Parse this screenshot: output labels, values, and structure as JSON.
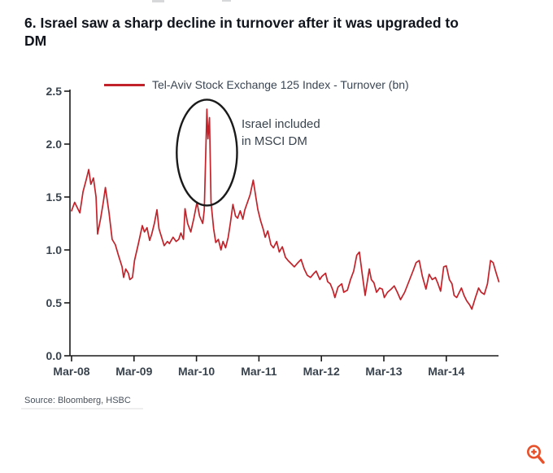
{
  "page": {
    "title": "6. Israel saw a sharp decline in turnover after it was upgraded to DM",
    "source": "Source: Bloomberg, HSBC"
  },
  "legend": {
    "label": "Tel-Aviv Stock Exchange 125 Index - Turnover (bn)",
    "swatch_color": "#c2222a"
  },
  "annotation": {
    "line1": "Israel included",
    "line2": "in MSCI DM"
  },
  "controls": {
    "zoom_icon": "magnifier-plus",
    "zoom_icon_color": "#e8502a"
  },
  "chart_data": {
    "type": "line",
    "title": "Tel-Aviv Stock Exchange 125 Index - Turnover (bn)",
    "xlabel": "",
    "ylabel": "",
    "x_unit": "months since Mar-2008",
    "xlim_months": [
      0,
      82
    ],
    "ylim": [
      0,
      2.5
    ],
    "grid": false,
    "legend_position": "top",
    "x_tick_labels": [
      "Mar-08",
      "Mar-09",
      "Mar-10",
      "Mar-11",
      "Mar-12",
      "Mar-13",
      "Mar-14"
    ],
    "x_tick_months": [
      0,
      12,
      24,
      36,
      48,
      60,
      72
    ],
    "y_ticks": [
      0.0,
      0.5,
      1.0,
      1.5,
      2.0,
      2.5
    ],
    "y_tick_labels": [
      "0.0",
      "0.5",
      "1.0",
      "1.5",
      "2.0",
      "2.5"
    ],
    "annotations": [
      {
        "type": "ellipse",
        "center_month": 26.0,
        "center_value": 1.92,
        "rx_months": 5.8,
        "ry_value": 0.5,
        "color": "#1a1a1a"
      },
      {
        "type": "text",
        "text": "Israel included in MSCI DM",
        "month": 32.6,
        "value": 2.15
      }
    ],
    "series": [
      {
        "name": "Tel-Aviv Stock Exchange 125 Index - Turnover (bn)",
        "color": "#c2222a",
        "points": [
          [
            0,
            1.37
          ],
          [
            0.6,
            1.45
          ],
          [
            1.1,
            1.4
          ],
          [
            1.6,
            1.35
          ],
          [
            2.2,
            1.55
          ],
          [
            2.8,
            1.66
          ],
          [
            3.3,
            1.76
          ],
          [
            3.7,
            1.62
          ],
          [
            4.2,
            1.68
          ],
          [
            4.7,
            1.5
          ],
          [
            5.0,
            1.15
          ],
          [
            5.6,
            1.3
          ],
          [
            6.1,
            1.45
          ],
          [
            6.5,
            1.59
          ],
          [
            7.2,
            1.35
          ],
          [
            7.8,
            1.1
          ],
          [
            8.4,
            1.05
          ],
          [
            9.0,
            0.95
          ],
          [
            9.7,
            0.84
          ],
          [
            10.0,
            0.74
          ],
          [
            10.4,
            0.82
          ],
          [
            10.9,
            0.78
          ],
          [
            11.2,
            0.72
          ],
          [
            11.7,
            0.74
          ],
          [
            12.1,
            0.9
          ],
          [
            12.8,
            1.05
          ],
          [
            13.6,
            1.23
          ],
          [
            14.0,
            1.17
          ],
          [
            14.5,
            1.21
          ],
          [
            15.0,
            1.09
          ],
          [
            15.4,
            1.15
          ],
          [
            15.9,
            1.25
          ],
          [
            16.4,
            1.38
          ],
          [
            16.8,
            1.2
          ],
          [
            17.3,
            1.12
          ],
          [
            17.8,
            1.04
          ],
          [
            18.4,
            1.08
          ],
          [
            18.8,
            1.06
          ],
          [
            19.5,
            1.12
          ],
          [
            20.1,
            1.08
          ],
          [
            20.6,
            1.1
          ],
          [
            21.0,
            1.16
          ],
          [
            21.5,
            1.1
          ],
          [
            21.8,
            1.39
          ],
          [
            22.3,
            1.25
          ],
          [
            22.9,
            1.17
          ],
          [
            23.5,
            1.3
          ],
          [
            24.1,
            1.45
          ],
          [
            24.6,
            1.32
          ],
          [
            25.2,
            1.25
          ],
          [
            25.5,
            1.38
          ],
          [
            26.0,
            2.33
          ],
          [
            26.2,
            2.05
          ],
          [
            26.5,
            2.25
          ],
          [
            26.8,
            1.45
          ],
          [
            27.3,
            1.2
          ],
          [
            27.7,
            1.07
          ],
          [
            28.2,
            1.1
          ],
          [
            28.7,
            1.0
          ],
          [
            29.1,
            1.08
          ],
          [
            29.6,
            1.02
          ],
          [
            30.1,
            1.12
          ],
          [
            30.5,
            1.25
          ],
          [
            31.0,
            1.43
          ],
          [
            31.5,
            1.32
          ],
          [
            31.9,
            1.3
          ],
          [
            32.4,
            1.37
          ],
          [
            32.9,
            1.29
          ],
          [
            33.3,
            1.38
          ],
          [
            33.8,
            1.45
          ],
          [
            34.3,
            1.52
          ],
          [
            34.9,
            1.66
          ],
          [
            35.4,
            1.5
          ],
          [
            35.8,
            1.38
          ],
          [
            36.3,
            1.28
          ],
          [
            36.8,
            1.2
          ],
          [
            37.2,
            1.12
          ],
          [
            37.7,
            1.18
          ],
          [
            38.3,
            1.05
          ],
          [
            38.8,
            1.02
          ],
          [
            39.4,
            1.08
          ],
          [
            39.9,
            0.98
          ],
          [
            40.5,
            1.03
          ],
          [
            41.1,
            0.93
          ],
          [
            41.6,
            0.9
          ],
          [
            42.2,
            0.87
          ],
          [
            42.8,
            0.84
          ],
          [
            43.5,
            0.88
          ],
          [
            44.1,
            0.91
          ],
          [
            44.7,
            0.82
          ],
          [
            45.3,
            0.76
          ],
          [
            45.9,
            0.74
          ],
          [
            46.6,
            0.78
          ],
          [
            47.0,
            0.8
          ],
          [
            47.7,
            0.72
          ],
          [
            48.1,
            0.75
          ],
          [
            48.8,
            0.78
          ],
          [
            49.2,
            0.7
          ],
          [
            49.7,
            0.68
          ],
          [
            50.2,
            0.62
          ],
          [
            50.6,
            0.55
          ],
          [
            51.2,
            0.65
          ],
          [
            51.9,
            0.68
          ],
          [
            52.3,
            0.6
          ],
          [
            53.0,
            0.62
          ],
          [
            53.6,
            0.72
          ],
          [
            54.2,
            0.8
          ],
          [
            54.8,
            0.95
          ],
          [
            55.3,
            0.98
          ],
          [
            55.9,
            0.75
          ],
          [
            56.4,
            0.57
          ],
          [
            57.2,
            0.82
          ],
          [
            57.6,
            0.72
          ],
          [
            58.1,
            0.69
          ],
          [
            58.6,
            0.6
          ],
          [
            59.2,
            0.64
          ],
          [
            59.7,
            0.63
          ],
          [
            60.1,
            0.55
          ],
          [
            60.7,
            0.6
          ],
          [
            61.4,
            0.63
          ],
          [
            62.0,
            0.66
          ],
          [
            62.6,
            0.6
          ],
          [
            63.2,
            0.53
          ],
          [
            64.0,
            0.6
          ],
          [
            64.8,
            0.7
          ],
          [
            65.6,
            0.8
          ],
          [
            66.2,
            0.88
          ],
          [
            66.8,
            0.9
          ],
          [
            67.4,
            0.75
          ],
          [
            68.1,
            0.63
          ],
          [
            68.7,
            0.77
          ],
          [
            69.3,
            0.72
          ],
          [
            69.9,
            0.74
          ],
          [
            70.4,
            0.68
          ],
          [
            70.9,
            0.61
          ],
          [
            71.5,
            0.84
          ],
          [
            72.0,
            0.85
          ],
          [
            72.6,
            0.72
          ],
          [
            73.1,
            0.68
          ],
          [
            73.5,
            0.57
          ],
          [
            74.0,
            0.55
          ],
          [
            74.5,
            0.6
          ],
          [
            74.9,
            0.64
          ],
          [
            75.4,
            0.57
          ],
          [
            75.9,
            0.52
          ],
          [
            76.5,
            0.48
          ],
          [
            76.9,
            0.44
          ],
          [
            77.6,
            0.55
          ],
          [
            78.2,
            0.64
          ],
          [
            78.7,
            0.6
          ],
          [
            79.3,
            0.58
          ],
          [
            79.9,
            0.68
          ],
          [
            80.5,
            0.9
          ],
          [
            81.0,
            0.88
          ],
          [
            81.6,
            0.78
          ],
          [
            82.1,
            0.7
          ]
        ]
      }
    ]
  }
}
